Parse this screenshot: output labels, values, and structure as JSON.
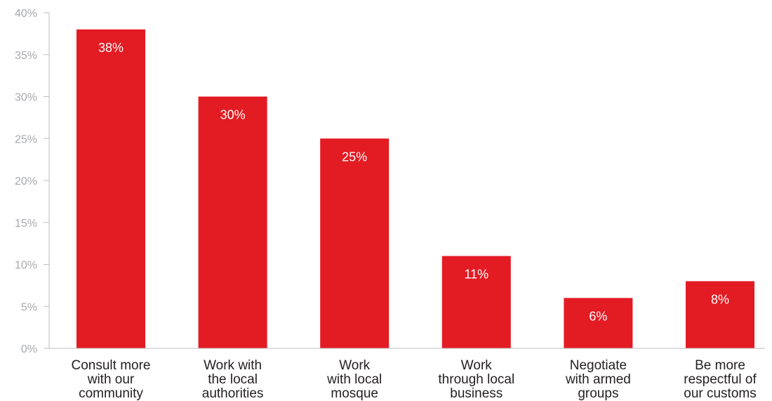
{
  "chart_data": {
    "type": "bar",
    "categories": [
      [
        "Consult more",
        "with our",
        "community"
      ],
      [
        "Work with",
        "the local",
        "authorities"
      ],
      [
        "Work",
        "with local",
        "mosque"
      ],
      [
        "Work",
        "through local",
        "business"
      ],
      [
        "Negotiate",
        "with armed",
        "groups"
      ],
      [
        "Be more",
        "respectful of",
        "our customs"
      ]
    ],
    "values": [
      38,
      30,
      25,
      11,
      6,
      8
    ],
    "value_labels": [
      "38%",
      "30%",
      "25%",
      "11%",
      "6%",
      "8%"
    ],
    "yticks": [
      "0%",
      "5%",
      "10%",
      "15%",
      "20%",
      "25%",
      "30%",
      "35%",
      "40%"
    ],
    "ylim": [
      0,
      40
    ],
    "title": "",
    "xlabel": "",
    "ylabel": "",
    "grid": false,
    "bar_color": "#e31b23"
  }
}
